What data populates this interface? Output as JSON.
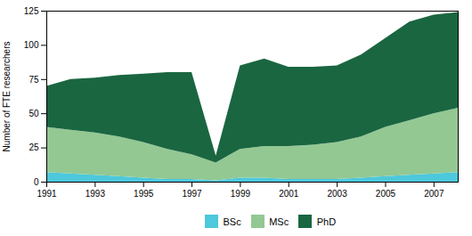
{
  "chart_data": {
    "type": "area",
    "stacked": true,
    "ylabel": "Number of FTE researchers",
    "x": [
      1991,
      1992,
      1993,
      1994,
      1995,
      1996,
      1997,
      1998,
      1999,
      2000,
      2001,
      2002,
      2003,
      2004,
      2005,
      2006,
      2007,
      2008
    ],
    "series": [
      {
        "name": "BSc",
        "color": "#4dc8dc",
        "values": [
          7,
          6,
          5,
          4,
          3,
          2,
          2,
          1,
          3,
          3,
          2,
          2,
          2,
          3,
          4,
          5,
          6,
          7
        ]
      },
      {
        "name": "MSc",
        "color": "#93c893",
        "values": [
          33,
          32,
          31,
          29,
          26,
          22,
          18,
          13,
          21,
          23,
          24,
          25,
          27,
          30,
          36,
          40,
          44,
          47
        ]
      },
      {
        "name": "PhD",
        "color": "#1a6641",
        "values": [
          30,
          37,
          40,
          45,
          50,
          56,
          60,
          5,
          61,
          64,
          58,
          57,
          56,
          60,
          65,
          72,
          72,
          70
        ]
      }
    ],
    "xlim": [
      1991,
      2008
    ],
    "xticks": [
      1991,
      1993,
      1995,
      1997,
      1999,
      2001,
      2003,
      2005,
      2007
    ],
    "ylim": [
      0,
      125
    ],
    "yticks": [
      0,
      25,
      50,
      75,
      100,
      125
    ],
    "grid": false,
    "legend": "bottom"
  }
}
